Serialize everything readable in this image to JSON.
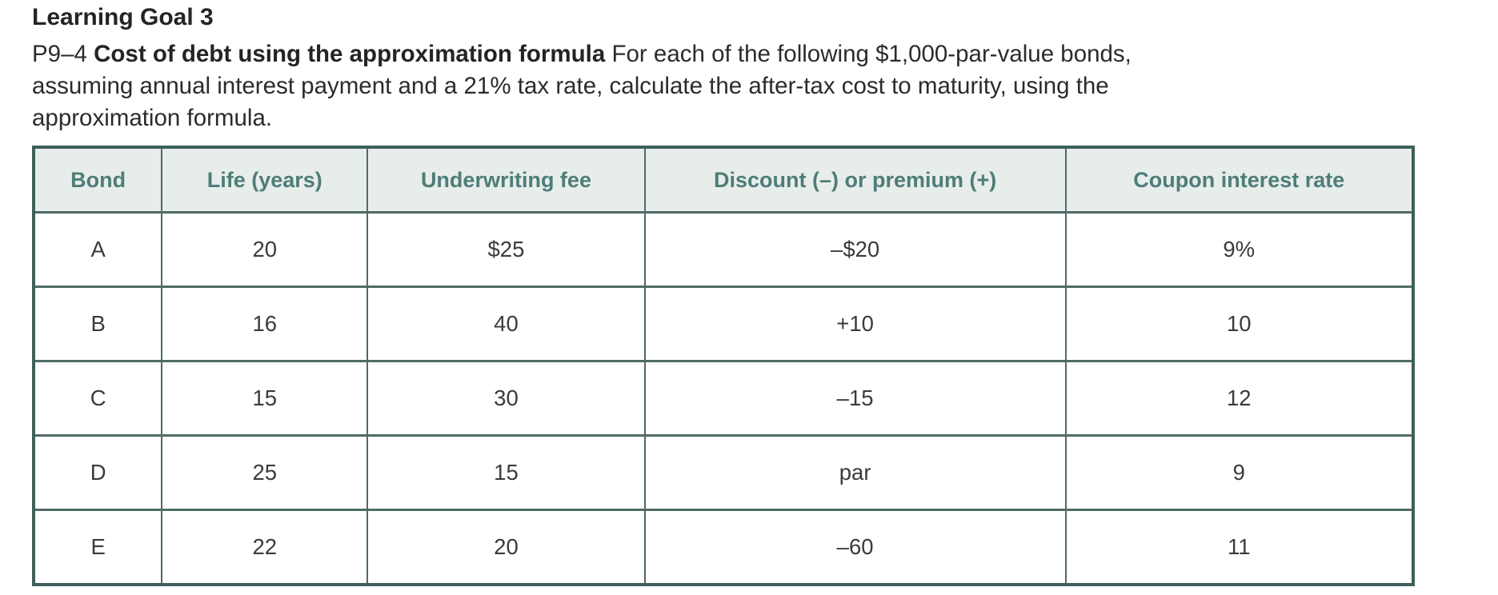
{
  "page": {
    "heading": "Learning Goal 3",
    "problem": {
      "number": "P9–4 ",
      "title_bold": "Cost of debt using the approximation formula",
      "body": " For each of the following $1,000-par-value bonds, assuming annual interest payment and a 21% tax rate, calculate the after-tax cost to maturity, using the approximation formula."
    }
  },
  "table": {
    "headers": [
      "Bond",
      "Life (years)",
      "Underwriting fee",
      "Discount (–) or premium (+)",
      "Coupon interest rate"
    ],
    "rows": [
      [
        "A",
        "20",
        "$25",
        "–$20",
        "9%"
      ],
      [
        "B",
        "16",
        "40",
        "+10",
        "10"
      ],
      [
        "C",
        "15",
        "30",
        "–15",
        "12"
      ],
      [
        "D",
        "25",
        "15",
        "par",
        "9"
      ],
      [
        "E",
        "22",
        "20",
        "–60",
        "11"
      ]
    ]
  },
  "colors": {
    "header_bg": "#e7edea",
    "header_text": "#4e7d78",
    "border_outer": "#3e5f5b",
    "border_inner": "#4e6b67",
    "body_text": "#3b3b3b"
  }
}
